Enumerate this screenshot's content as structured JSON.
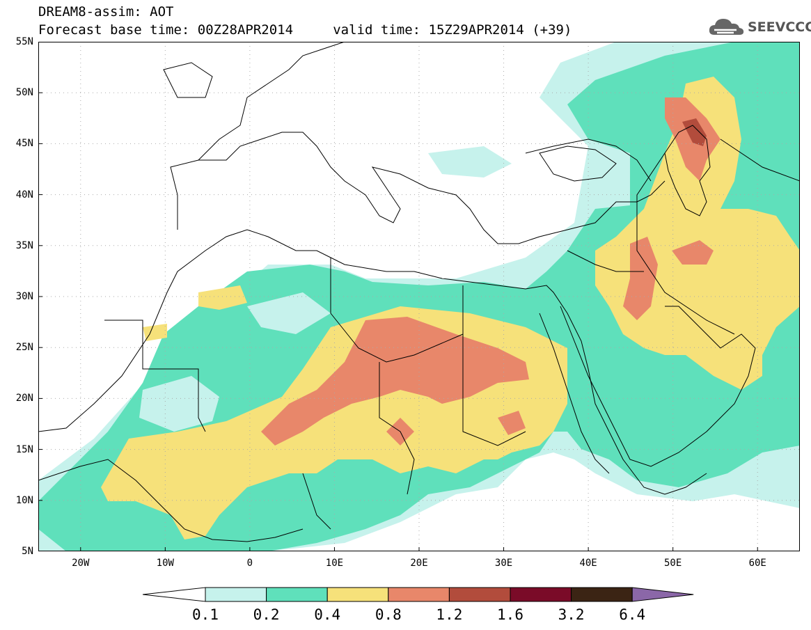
{
  "header": {
    "title": "DREAM8-assim: AOT",
    "subtitle": "Forecast base time: 00Z28APR2014     valid time: 15Z29APR2014 (+39)"
  },
  "logo": {
    "text": "SEEVCCC",
    "icon": "cloud-icon"
  },
  "map": {
    "lat_labels": [
      "55N",
      "50N",
      "45N",
      "40N",
      "35N",
      "30N",
      "25N",
      "20N",
      "15N",
      "10N",
      "5N"
    ],
    "lon_labels": [
      "20W",
      "10W",
      "0",
      "10E",
      "20E",
      "30E",
      "40E",
      "50E",
      "60E"
    ],
    "lon_range": [
      -25,
      65
    ],
    "lat_range": [
      5,
      55
    ]
  },
  "colorbar": {
    "labels": [
      "0.1",
      "0.2",
      "0.4",
      "0.8",
      "1.2",
      "1.6",
      "3.2",
      "6.4"
    ],
    "colors": [
      "#ffffff",
      "#c6f2ec",
      "#5fe0bb",
      "#f6e17a",
      "#e8876a",
      "#b24c3c",
      "#7a0b28",
      "#3b2414",
      "#8b67a8"
    ]
  }
}
